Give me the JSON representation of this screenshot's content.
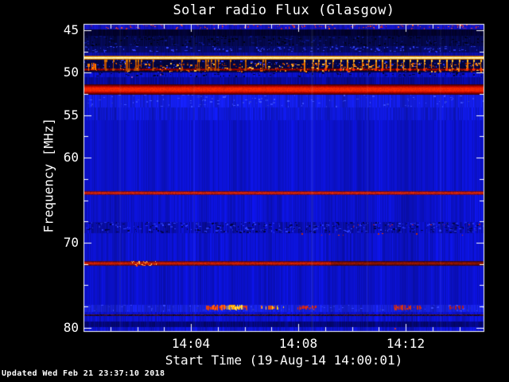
{
  "footer": {
    "updated_label": "Updated Wed Feb 21 23:37:10 2018"
  },
  "chart_data": {
    "type": "heatmap",
    "subtype": "radio-spectrogram",
    "title": "Solar radio Flux (Glasgow)",
    "xlabel": "Start Time (19-Aug-14 14:00:01)",
    "ylabel": "Frequency [MHz]",
    "legend": "none",
    "grid": false,
    "seed": 20180221,
    "x_axis": {
      "range_minutes": [
        0,
        14.93
      ],
      "start_time": "14:00:01",
      "minor_step_min": 1,
      "major_ticks": [
        {
          "minute": 4,
          "label": "14:04"
        },
        {
          "minute": 8,
          "label": "14:08"
        },
        {
          "minute": 12,
          "label": "14:12"
        }
      ]
    },
    "y_axis": {
      "range_mhz": [
        44.25,
        80.5
      ],
      "orientation": "increasing-downward",
      "minor_step_mhz": 2.5,
      "major_ticks": [
        45,
        50,
        55,
        60,
        70,
        80
      ]
    },
    "bands": [
      {
        "f0": 44.25,
        "f1": 44.9,
        "color": "#1414c0",
        "amp": 0.3
      },
      {
        "f0": 44.9,
        "f1": 45.65,
        "color": "#020230",
        "amp": 0.6
      },
      {
        "f0": 45.65,
        "f1": 46.9,
        "color": "#04084a",
        "amp": 0.55,
        "dashes": [
          {
            "color": "#000214",
            "count": 160
          },
          {
            "color": "#0a1480",
            "count": 120
          }
        ]
      },
      {
        "f0": 46.9,
        "f1": 47.65,
        "color": "#050a66",
        "amp": 0.4,
        "dashes": [
          {
            "color": "#2a38e8",
            "count": 150
          }
        ]
      },
      {
        "f0": 47.65,
        "f1": 48.0,
        "color": "#0a0e9c",
        "amp": 0.3
      },
      {
        "f0": 48.47,
        "f1": 49.95,
        "color": "#030542",
        "amp": 0.5,
        "dashes": [
          {
            "color": "#2433d8",
            "count": 170
          },
          {
            "color": "#000120",
            "count": 100
          }
        ]
      },
      {
        "f0": 49.95,
        "f1": 50.55,
        "color": "#0a10c0",
        "amp": 0.35,
        "dashes": [
          {
            "color": "#040634",
            "count": 90
          }
        ]
      },
      {
        "f0": 50.55,
        "f1": 51.4,
        "color": "#070b9a",
        "amp": 0.4
      },
      {
        "f0": 52.6,
        "f1": 54.05,
        "color": "#131de0",
        "amp": 0.3,
        "dashes": [
          {
            "color": "#3242f8",
            "count": 130
          }
        ]
      },
      {
        "f0": 54.05,
        "f1": 55.6,
        "color": "#0f18d4",
        "amp": 0.28
      },
      {
        "f0": 55.6,
        "f1": 63.95,
        "color": "#0c12cc",
        "amp": 0.22
      },
      {
        "f0": 64.4,
        "f1": 67.55,
        "color": "#0c12cc",
        "amp": 0.25
      },
      {
        "f0": 67.55,
        "f1": 68.9,
        "color": "#0a0fb4",
        "amp": 0.55,
        "dashes": [
          {
            "color": "#2634ec",
            "count": 210
          },
          {
            "color": "#03054a",
            "count": 170
          }
        ]
      },
      {
        "f0": 68.9,
        "f1": 72.2,
        "color": "#0c12cc",
        "amp": 0.28
      },
      {
        "f0": 72.75,
        "f1": 77.3,
        "color": "#0b11c8",
        "amp": 0.25
      },
      {
        "f0": 77.3,
        "f1": 78.15,
        "color": "#161fd8",
        "amp": 0.3,
        "dashes": [
          {
            "color": "#2c3af0",
            "count": 90
          }
        ]
      },
      {
        "f0": 78.15,
        "f1": 79.25,
        "color": "#0c12cc",
        "amp": 0.3
      },
      {
        "f0": 79.25,
        "f1": 79.95,
        "color": "#04077a",
        "amp": 0.4
      },
      {
        "f0": 79.95,
        "f1": 80.5,
        "color": "#0c12cc",
        "amp": 0.3
      }
    ],
    "rfi_lines": [
      {
        "name": "carrier-48.2-MHz",
        "f_mhz": 48.0,
        "rows": [
          "#b45600",
          "#ffc83c",
          "#fff8dc",
          "#ffe27a",
          "#c06400"
        ],
        "variation": 0.12
      },
      {
        "name": "thin-49.6-MHz",
        "f_mhz": 49.5,
        "rows": [
          "#6e0000",
          "#a40600",
          "#5a0000"
        ],
        "variation": 0.55,
        "gap_chance": 0.1
      },
      {
        "name": "band-52-MHz",
        "f_mhz": 51.4,
        "rows": [
          "#4a0000",
          "#7a0000",
          "#aa0400",
          "#d21000",
          "#ee2000",
          "#f52a00",
          "#f02600",
          "#f52a00",
          "#ee2000",
          "#d21000",
          "#a00200",
          "#6e0000",
          "#460000"
        ],
        "variation": 0.2
      },
      {
        "name": "line-64.2-MHz",
        "f_mhz": 63.95,
        "rows": [
          "#5a0a3c",
          "#b41a14",
          "#dc2800",
          "#b41a14",
          "#600a42"
        ],
        "variation": 0.35
      },
      {
        "name": "line-72.5-MHz",
        "f_mhz": 72.2,
        "rows": [
          "#50082e",
          "#961010",
          "#cc1e00",
          "#c81e00",
          "#8c1014",
          "#4c0a32"
        ],
        "variation": 0.35,
        "dim_after_min": 9.2,
        "patch": {
          "t0": 1.75,
          "t1": 2.75,
          "colors": [
            "#ff8c14",
            "#ffc864",
            "#ff4600"
          ]
        }
      },
      {
        "name": "faint-78.5-MHz",
        "f_mhz": 78.45,
        "rows": [
          "#401038",
          "#2a0a2e"
        ],
        "variation": 0.45,
        "gap_chance": 0.3
      }
    ],
    "comb": {
      "t_start": 8.25,
      "t_end": 14.93,
      "period_min": 0.262,
      "f_top": 48.42,
      "min_len": 7,
      "var_len": 6,
      "colors": [
        "#ffbe28",
        "#f07800",
        "#ff3200"
      ],
      "pre_teeth": 22,
      "pre_colors": [
        "#d27000",
        "#b44a00"
      ]
    },
    "dash_field": {
      "f0": 48.85,
      "f1": 49.95,
      "count": 330,
      "right_bias": 0.75,
      "colors": [
        "#ff8c14",
        "#e05a00",
        "#b43200",
        "#ffbe3c",
        "#8c2000"
      ]
    },
    "bursts": [
      {
        "t0": 0.15,
        "t1": 0.45,
        "f0": 48.85,
        "f1": 49.95,
        "density": 0.95,
        "color": "#ff7800",
        "color2": "#d23200"
      },
      {
        "t0": 4.52,
        "t1": 4.8,
        "f0": 77.45,
        "f1": 78.1,
        "density": 0.7,
        "color": "#e03c14",
        "color2": "#b42828"
      },
      {
        "t0": 4.82,
        "t1": 5.33,
        "f0": 77.4,
        "f1": 78.15,
        "density": 0.92,
        "color": "#ff6414",
        "color2": "#e02800"
      },
      {
        "t0": 5.35,
        "t1": 5.95,
        "f0": 77.4,
        "f1": 78.15,
        "density": 0.95,
        "color": "#ffe050",
        "color2": "#ffa000"
      },
      {
        "t0": 5.95,
        "t1": 6.15,
        "f0": 77.45,
        "f1": 78.1,
        "density": 0.75,
        "color": "#e03c14"
      },
      {
        "t0": 6.6,
        "t1": 7.02,
        "f0": 77.45,
        "f1": 78.05,
        "density": 0.45,
        "color": "#ffd24a",
        "color2": "#e05014"
      },
      {
        "t0": 7.05,
        "t1": 7.48,
        "f0": 77.45,
        "f1": 78.05,
        "density": 0.5,
        "color": "#ffc814",
        "color2": "#e04614"
      },
      {
        "t0": 7.98,
        "t1": 8.65,
        "f0": 77.45,
        "f1": 78.1,
        "density": 0.8,
        "color": "#dc2814",
        "color2": "#a01e3c"
      },
      {
        "t0": 11.55,
        "t1": 12.18,
        "f0": 77.4,
        "f1": 78.15,
        "density": 0.75,
        "color": "#d23214",
        "color2": "#8c1e5a"
      },
      {
        "t0": 12.25,
        "t1": 12.62,
        "f0": 77.45,
        "f1": 78.05,
        "density": 0.55,
        "color": "#c82814",
        "color2": "#e05a14"
      },
      {
        "t0": 13.55,
        "t1": 14.18,
        "f0": 77.45,
        "f1": 78.05,
        "density": 0.4,
        "color": "#aa1e28"
      }
    ],
    "speckles": [
      {
        "f0": 44.32,
        "f1": 44.85,
        "count": 180,
        "colors": [
          "#c83232",
          "#a01e50",
          "#e0503c",
          "#6e2a78"
        ]
      },
      {
        "f0": 68.95,
        "f1": 69.25,
        "count": 9,
        "right_bias": 0.5,
        "colors": [
          "#e63214",
          "#c02810"
        ]
      },
      {
        "f0": 67.8,
        "f1": 68.4,
        "count": 10,
        "right_bias": 0.6,
        "colors": [
          "#d22814",
          "#aa1430"
        ]
      }
    ],
    "dots": [
      {
        "t": 1.78,
        "f": 50.45,
        "color": "#8c46c8"
      },
      {
        "t": 2.85,
        "f": 50.2,
        "color": "#7a3cb4"
      },
      {
        "t": 11.6,
        "f": 80.1,
        "color": "#c83232"
      }
    ],
    "streaks": [
      {
        "t": 1.35,
        "alpha": 0.06,
        "w": 2
      },
      {
        "t": 4.1,
        "alpha": 0.05,
        "w": 2
      },
      {
        "t": 8.5,
        "alpha": 0.07,
        "w": 3
      },
      {
        "t": 10.55,
        "alpha": 0.05,
        "w": 2
      },
      {
        "t": 13.3,
        "alpha": 0.05,
        "w": 2
      }
    ],
    "frame_color": "#ffffff",
    "background_color": "#000000"
  }
}
